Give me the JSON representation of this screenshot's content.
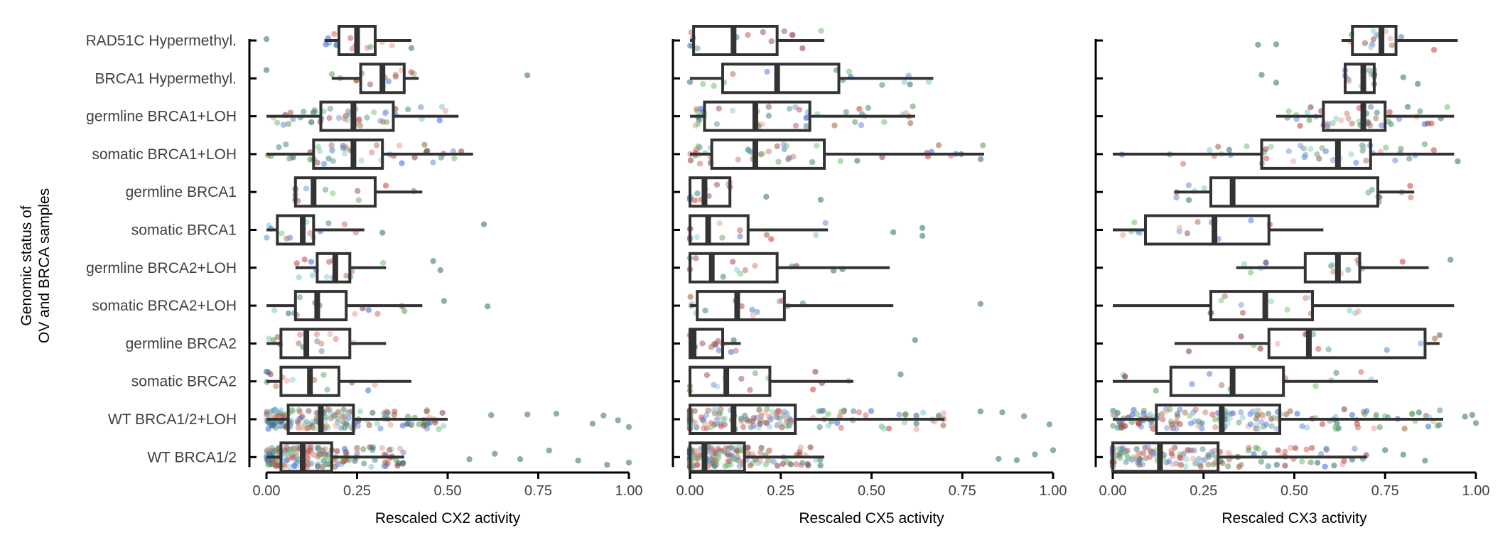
{
  "chart_data": {
    "type": "boxplot",
    "y_title_lines": [
      "Genomic status of",
      "OV and BRCA samples"
    ],
    "categories": [
      "RAD51C Hypermethyl.",
      "BRCA1 Hypermethyl.",
      "germline BRCA1+LOH",
      "somatic BRCA1+LOH",
      "germline BRCA1",
      "somatic BRCA1",
      "germline BRCA2+LOH",
      "somatic BRCA2+LOH",
      "germline BRCA2",
      "somatic BRCA2",
      "WT BRCA1/2+LOH",
      "WT BRCA1/2"
    ],
    "xlim": [
      0,
      1
    ],
    "x_ticks": [
      "0.00",
      "0.25",
      "0.50",
      "0.75",
      "1.00"
    ],
    "point_colors": [
      "#2e6b6b",
      "#4a8a8a",
      "#e8a090",
      "#5a9a5a",
      "#3a6ad8",
      "#8a3a3a",
      "#c04040",
      "#80c8d0",
      "#a06040",
      "#70c070",
      "#d07060",
      "#6a8ad8"
    ],
    "panels": [
      {
        "xlabel": "Rescaled CX2 activity",
        "boxes": [
          {
            "whisker_low": 0.16,
            "q1": 0.2,
            "median": 0.25,
            "q3": 0.3,
            "whisker_high": 0.4,
            "outliers": [
              0.0,
              0.4
            ]
          },
          {
            "whisker_low": 0.18,
            "q1": 0.26,
            "median": 0.32,
            "q3": 0.38,
            "whisker_high": 0.42,
            "outliers": [
              0.0,
              0.72
            ]
          },
          {
            "whisker_low": 0.0,
            "q1": 0.15,
            "median": 0.24,
            "q3": 0.35,
            "whisker_high": 0.53,
            "outliers": []
          },
          {
            "whisker_low": 0.0,
            "q1": 0.13,
            "median": 0.24,
            "q3": 0.32,
            "whisker_high": 0.57,
            "outliers": []
          },
          {
            "whisker_low": 0.08,
            "q1": 0.08,
            "median": 0.13,
            "q3": 0.3,
            "whisker_high": 0.43,
            "outliers": []
          },
          {
            "whisker_low": 0.0,
            "q1": 0.03,
            "median": 0.1,
            "q3": 0.13,
            "whisker_high": 0.27,
            "outliers": [
              0.6,
              0.32
            ]
          },
          {
            "whisker_low": 0.08,
            "q1": 0.14,
            "median": 0.19,
            "q3": 0.23,
            "whisker_high": 0.33,
            "outliers": [
              0.46,
              0.48
            ]
          },
          {
            "whisker_low": 0.0,
            "q1": 0.08,
            "median": 0.14,
            "q3": 0.22,
            "whisker_high": 0.43,
            "outliers": [
              0.61,
              0.49
            ]
          },
          {
            "whisker_low": 0.0,
            "q1": 0.04,
            "median": 0.11,
            "q3": 0.23,
            "whisker_high": 0.33,
            "outliers": []
          },
          {
            "whisker_low": 0.0,
            "q1": 0.04,
            "median": 0.12,
            "q3": 0.2,
            "whisker_high": 0.4,
            "outliers": []
          },
          {
            "whisker_low": 0.0,
            "q1": 0.06,
            "median": 0.15,
            "q3": 0.24,
            "whisker_high": 0.5,
            "outliers": [
              0.62,
              0.72,
              0.8,
              0.9,
              0.93,
              0.97,
              1.0
            ]
          },
          {
            "whisker_low": 0.0,
            "q1": 0.04,
            "median": 0.1,
            "q3": 0.18,
            "whisker_high": 0.38,
            "outliers": [
              0.56,
              0.63,
              0.7,
              0.78,
              0.86,
              0.94,
              1.0
            ]
          }
        ]
      },
      {
        "xlabel": "Rescaled CX5 activity",
        "boxes": [
          {
            "whisker_low": 0.0,
            "q1": 0.01,
            "median": 0.12,
            "q3": 0.24,
            "whisker_high": 0.37,
            "outliers": []
          },
          {
            "whisker_low": 0.0,
            "q1": 0.09,
            "median": 0.24,
            "q3": 0.41,
            "whisker_high": 0.67,
            "outliers": [
              0.0
            ]
          },
          {
            "whisker_low": 0.0,
            "q1": 0.04,
            "median": 0.18,
            "q3": 0.33,
            "whisker_high": 0.62,
            "outliers": []
          },
          {
            "whisker_low": 0.0,
            "q1": 0.06,
            "median": 0.18,
            "q3": 0.37,
            "whisker_high": 0.81,
            "outliers": []
          },
          {
            "whisker_low": 0.0,
            "q1": 0.0,
            "median": 0.04,
            "q3": 0.11,
            "whisker_high": 0.11,
            "outliers": [
              0.36,
              0.21
            ]
          },
          {
            "whisker_low": 0.0,
            "q1": 0.0,
            "median": 0.05,
            "q3": 0.16,
            "whisker_high": 0.38,
            "outliers": [
              0.64,
              0.64,
              0.56
            ]
          },
          {
            "whisker_low": 0.0,
            "q1": 0.0,
            "median": 0.06,
            "q3": 0.24,
            "whisker_high": 0.55,
            "outliers": [
              0.42
            ]
          },
          {
            "whisker_low": 0.0,
            "q1": 0.02,
            "median": 0.13,
            "q3": 0.26,
            "whisker_high": 0.56,
            "outliers": [
              0.8
            ]
          },
          {
            "whisker_low": 0.0,
            "q1": 0.0,
            "median": 0.01,
            "q3": 0.09,
            "whisker_high": 0.14,
            "outliers": [
              0.62
            ]
          },
          {
            "whisker_low": 0.0,
            "q1": 0.0,
            "median": 0.1,
            "q3": 0.22,
            "whisker_high": 0.45,
            "outliers": [
              0.58
            ]
          },
          {
            "whisker_low": 0.0,
            "q1": 0.0,
            "median": 0.12,
            "q3": 0.29,
            "whisker_high": 0.7,
            "outliers": [
              0.8,
              0.86,
              0.92,
              0.99
            ]
          },
          {
            "whisker_low": 0.0,
            "q1": 0.0,
            "median": 0.04,
            "q3": 0.15,
            "whisker_high": 0.37,
            "outliers": [
              0.85,
              0.9,
              0.95,
              1.0
            ]
          }
        ]
      },
      {
        "xlabel": "Rescaled CX3 activity",
        "boxes": [
          {
            "whisker_low": 0.63,
            "q1": 0.66,
            "median": 0.74,
            "q3": 0.78,
            "whisker_high": 0.95,
            "outliers": [
              0.4,
              0.45
            ]
          },
          {
            "whisker_low": 0.64,
            "q1": 0.64,
            "median": 0.69,
            "q3": 0.72,
            "whisker_high": 0.72,
            "outliers": [
              0.41,
              0.45,
              0.8,
              0.84
            ]
          },
          {
            "whisker_low": 0.45,
            "q1": 0.58,
            "median": 0.69,
            "q3": 0.75,
            "whisker_high": 0.94,
            "outliers": []
          },
          {
            "whisker_low": 0.0,
            "q1": 0.41,
            "median": 0.62,
            "q3": 0.71,
            "whisker_high": 0.94,
            "outliers": [
              0.95
            ]
          },
          {
            "whisker_low": 0.17,
            "q1": 0.27,
            "median": 0.33,
            "q3": 0.73,
            "whisker_high": 0.83,
            "outliers": []
          },
          {
            "whisker_low": 0.0,
            "q1": 0.09,
            "median": 0.28,
            "q3": 0.43,
            "whisker_high": 0.58,
            "outliers": []
          },
          {
            "whisker_low": 0.34,
            "q1": 0.53,
            "median": 0.62,
            "q3": 0.68,
            "whisker_high": 0.87,
            "outliers": [
              0.93
            ]
          },
          {
            "whisker_low": 0.0,
            "q1": 0.27,
            "median": 0.42,
            "q3": 0.55,
            "whisker_high": 0.94,
            "outliers": []
          },
          {
            "whisker_low": 0.17,
            "q1": 0.43,
            "median": 0.54,
            "q3": 0.86,
            "whisker_high": 0.9,
            "outliers": [
              0.9
            ]
          },
          {
            "whisker_low": 0.0,
            "q1": 0.16,
            "median": 0.33,
            "q3": 0.47,
            "whisker_high": 0.73,
            "outliers": []
          },
          {
            "whisker_low": 0.0,
            "q1": 0.12,
            "median": 0.3,
            "q3": 0.46,
            "whisker_high": 0.91,
            "outliers": [
              0.97,
              0.99,
              1.0
            ]
          },
          {
            "whisker_low": 0.0,
            "q1": 0.0,
            "median": 0.13,
            "q3": 0.29,
            "whisker_high": 0.7,
            "outliers": [
              0.75,
              0.8,
              0.86
            ]
          }
        ]
      }
    ]
  }
}
